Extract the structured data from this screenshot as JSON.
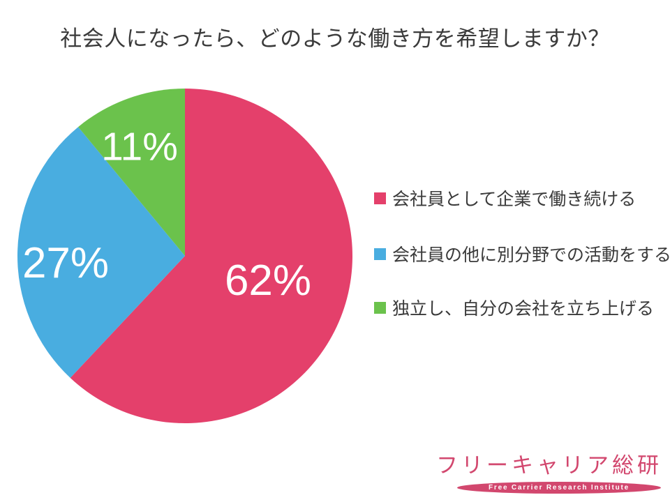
{
  "title": "社会人になったら、どのような働き方を希望しますか？",
  "chart_data": {
    "type": "pie",
    "title": "社会人になったら、どのような働き方を希望しますか？",
    "unit": "%",
    "start_angle_deg": 0,
    "direction": "clockwise",
    "legend_position": "right",
    "data_labels": "percent-inside-white",
    "segments": [
      {
        "label": "会社員として企業で働き続ける",
        "value": 62,
        "label_text": "62%",
        "color": "#E4406B"
      },
      {
        "label": "会社員の他に別分野での活動をする",
        "value": 27,
        "label_text": "27%",
        "color": "#49ADE0"
      },
      {
        "label": "独立し、自分の会社を立ち上げる",
        "value": 11,
        "label_text": "11%",
        "color": "#6BC24C"
      }
    ]
  },
  "logo": {
    "name": "フリーキャリア総研",
    "subtitle": "Free Carrier Research Institute",
    "color": "#D2476E"
  },
  "colors": {
    "background": "#FFFFFF",
    "title_text": "#3A3A3A",
    "legend_text": "#3A3A3A",
    "data_label_text": "#FFFFFF"
  }
}
